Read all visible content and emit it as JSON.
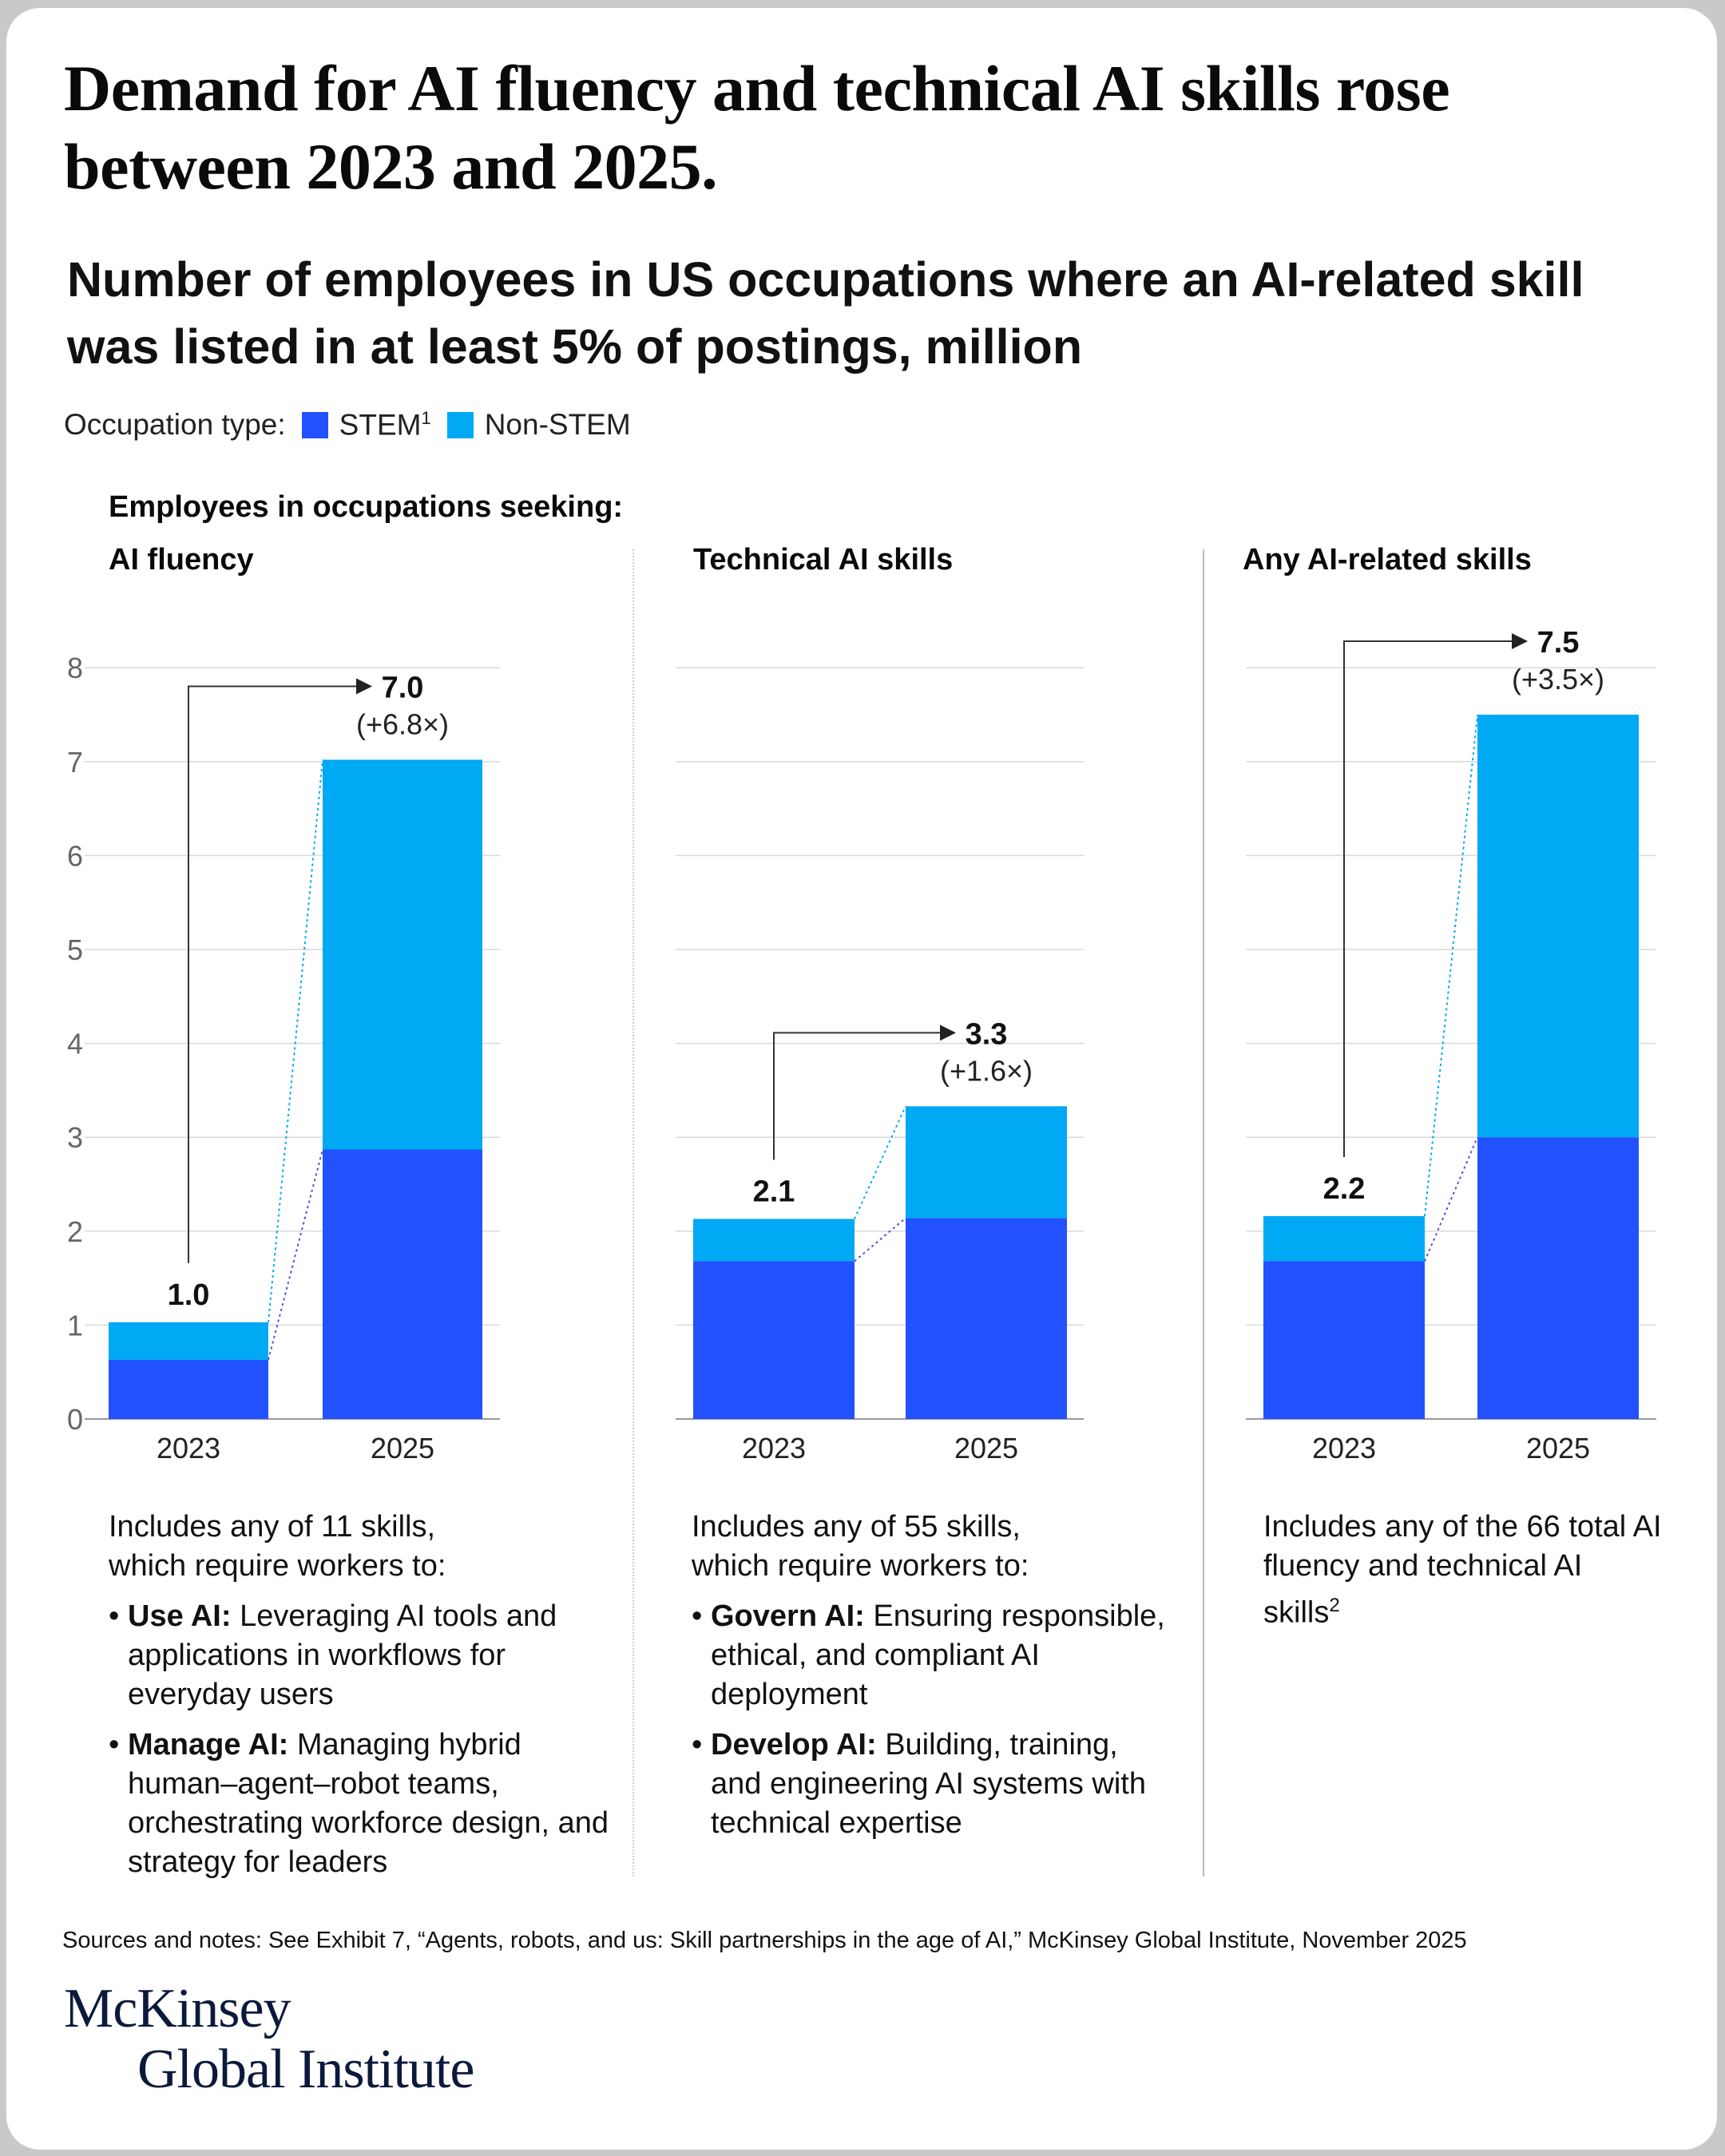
{
  "title": "Demand for AI fluency and technical AI skills rose between 2023 and 2025.",
  "subtitle": "Number of employees in US occupations where an AI-related skill was listed in at least 5% of postings, million",
  "legend": {
    "label": "Occupation type:",
    "items": [
      {
        "name": "STEM",
        "sup": "1",
        "color": "#2251ff"
      },
      {
        "name": "Non-STEM",
        "sup": "",
        "color": "#00a9f4"
      }
    ]
  },
  "panels_heading": "Employees in occupations seeking:",
  "colors": {
    "stem": "#2251ff",
    "non_stem": "#00a9f4",
    "grid": "#d9d9d9",
    "axis": "#999999"
  },
  "chart_data": [
    {
      "type": "bar",
      "title": "AI fluency",
      "categories": [
        "2023",
        "2025"
      ],
      "series": [
        {
          "name": "STEM",
          "values": [
            0.63,
            2.87
          ]
        },
        {
          "name": "Non-STEM",
          "values": [
            0.4,
            4.15
          ]
        }
      ],
      "totals": [
        "1.0",
        "7.0"
      ],
      "change": "(+6.8×)",
      "ylim": [
        0,
        8
      ],
      "yticks": [
        "0",
        "1",
        "2",
        "3",
        "4",
        "5",
        "6",
        "7",
        "8"
      ],
      "grid": true
    },
    {
      "type": "bar",
      "title": "Technical AI skills",
      "categories": [
        "2023",
        "2025"
      ],
      "series": [
        {
          "name": "STEM",
          "values": [
            1.68,
            2.14
          ]
        },
        {
          "name": "Non-STEM",
          "values": [
            0.45,
            1.19
          ]
        }
      ],
      "totals": [
        "2.1",
        "3.3"
      ],
      "change": "(+1.6×)",
      "ylim": [
        0,
        8
      ],
      "grid": true
    },
    {
      "type": "bar",
      "title": "Any AI-related skills",
      "categories": [
        "2023",
        "2025"
      ],
      "series": [
        {
          "name": "STEM",
          "values": [
            1.68,
            3.0
          ]
        },
        {
          "name": "Non-STEM",
          "values": [
            0.48,
            4.5
          ]
        }
      ],
      "totals": [
        "2.2",
        "7.5"
      ],
      "change": "(+3.5×)",
      "ylim": [
        0,
        8
      ],
      "grid": true
    }
  ],
  "notes": [
    {
      "intro": [
        "Includes any of 11 skills,",
        "which require workers to:"
      ],
      "bullets": [
        {
          "term": "Use AI:",
          "text": " Leveraging AI tools and applications in workflows for everyday users"
        },
        {
          "term": "Manage AI:",
          "text": " Managing hybrid human–agent–robot teams, orchestrating workforce design, and strategy for leaders"
        }
      ]
    },
    {
      "intro": [
        "Includes any of 55 skills,",
        "which require workers to:"
      ],
      "bullets": [
        {
          "term": "Govern AI:",
          "text": " Ensuring responsible, ethical, and compliant AI deployment"
        },
        {
          "term": "Develop AI:",
          "text": " Building, training, and engineering AI systems with technical expertise"
        }
      ]
    },
    {
      "intro_text": "Includes any of the 66 total AI fluency and technical AI skills",
      "intro_sup": "2"
    }
  ],
  "source": "Sources and notes: See Exhibit 7, “Agents, robots, and us: Skill partnerships in the age of AI,” McKinsey Global Institute, November 2025",
  "logo": {
    "line1": "McKinsey",
    "line2": "Global Institute"
  }
}
